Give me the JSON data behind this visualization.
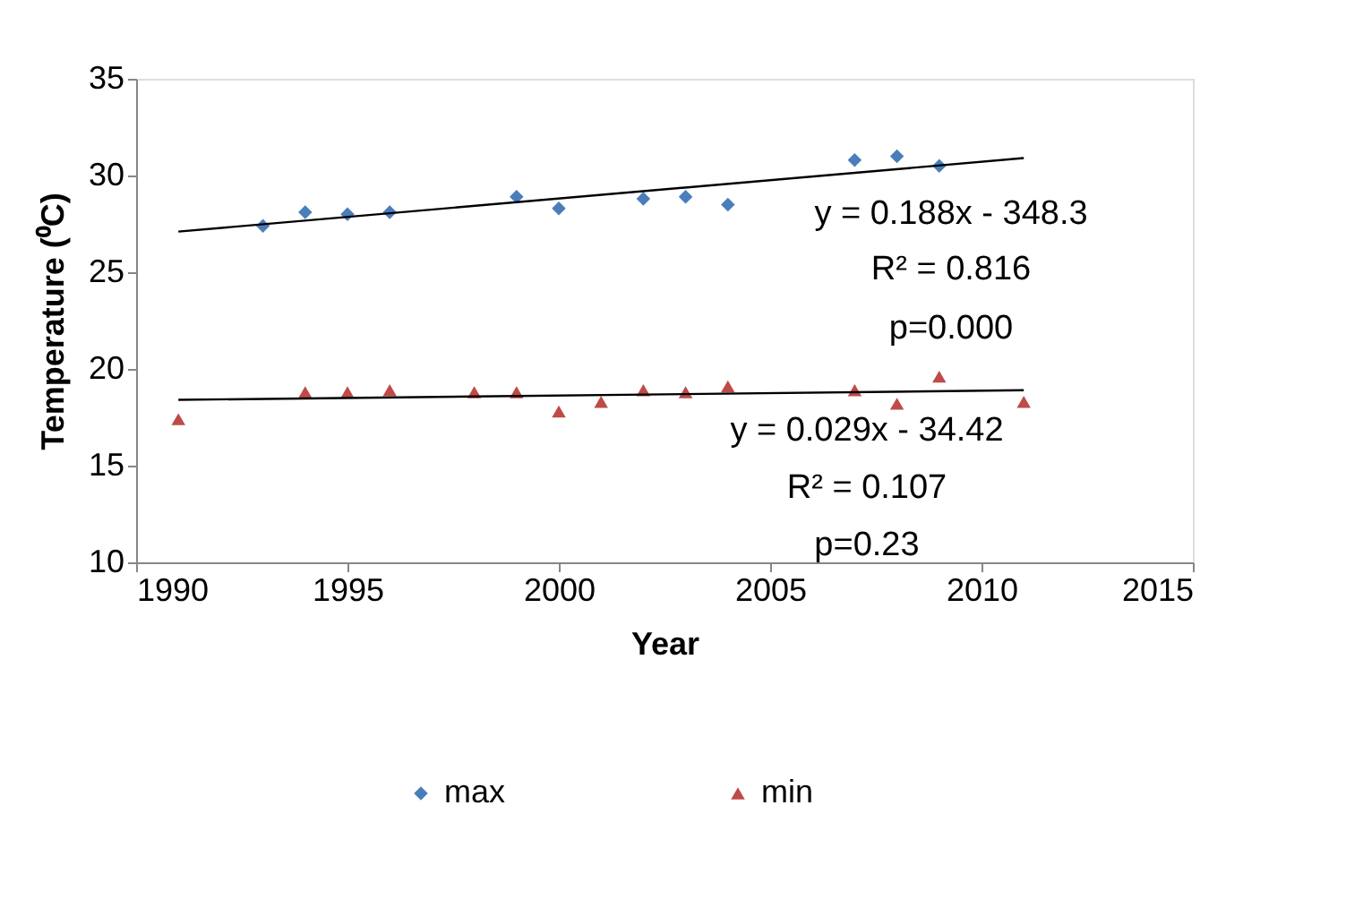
{
  "chart_data": {
    "type": "scatter",
    "xlabel": "Year",
    "ylabel": "Temperature (⁰C)",
    "xlim": [
      1990,
      2015
    ],
    "ylim": [
      10,
      35
    ],
    "xticks": [
      1990,
      1995,
      2000,
      2005,
      2010,
      2015
    ],
    "yticks": [
      10,
      15,
      20,
      25,
      30,
      35
    ],
    "grid": false,
    "legend": "bottom",
    "series": [
      {
        "name": "max",
        "color": "#4a7ebb",
        "marker": "diamond",
        "x": [
          1993,
          1994,
          1995,
          1996,
          1999,
          2000,
          2002,
          2003,
          2004,
          2007,
          2008,
          2009
        ],
        "values": [
          27.4,
          28.1,
          28.0,
          28.1,
          28.9,
          28.3,
          28.8,
          28.9,
          28.5,
          30.8,
          31.0,
          30.5
        ]
      },
      {
        "name": "min",
        "color": "#be4b48",
        "marker": "triangle",
        "x": [
          1991,
          1994,
          1995,
          1996,
          1998,
          1999,
          2000,
          2001,
          2002,
          2003,
          2004,
          2007,
          2008,
          2009,
          2011
        ],
        "values": [
          17.4,
          18.8,
          18.8,
          18.9,
          18.8,
          18.8,
          17.8,
          18.3,
          18.9,
          18.8,
          19.1,
          18.9,
          18.2,
          19.6,
          18.3
        ]
      },
      {
        "type": "line",
        "color": "#000000",
        "marker": "none",
        "x": [
          1991,
          2011
        ],
        "values": [
          27.1,
          30.9
        ]
      },
      {
        "type": "line",
        "color": "#000000",
        "marker": "none",
        "x": [
          1991,
          2011
        ],
        "values": [
          18.4,
          18.9
        ]
      }
    ],
    "annotations": [
      "y = 0.188x - 348.3",
      "R² = 0.816",
      "p=0.000",
      "y = 0.029x - 34.42",
      "R² = 0.107",
      "p=0.23"
    ]
  }
}
